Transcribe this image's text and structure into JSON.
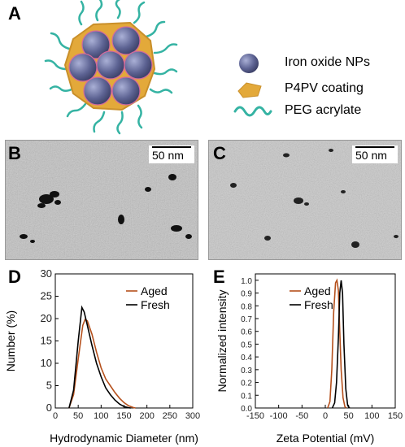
{
  "panels": {
    "A": "A",
    "B": "B",
    "C": "C",
    "D": "D",
    "E": "E"
  },
  "schematic_legend": [
    {
      "label": "Iron oxide NPs",
      "icon": "sphere-icon"
    },
    {
      "label": "P4PV coating",
      "icon": "coating-icon"
    },
    {
      "label": "PEG acrylate",
      "icon": "wave-icon"
    }
  ],
  "scale_bars": {
    "B": "50 nm",
    "C": "50 nm"
  },
  "colors": {
    "aged": "#b5501c",
    "fresh": "#000000",
    "np": "#5a5f8c",
    "coating": "#e3a93a",
    "peg": "#35b3a3"
  },
  "chart_data": [
    {
      "type": "line",
      "xlabel": "Hydrodynamic Diameter (nm)",
      "ylabel": "Number (%)",
      "xlim": [
        0,
        300
      ],
      "ylim": [
        0,
        30
      ],
      "xticks": [
        "0",
        "50",
        "100",
        "150",
        "200",
        "250",
        "300"
      ],
      "yticks": [
        "0",
        "5",
        "10",
        "15",
        "20",
        "25",
        "30"
      ],
      "legend": "top-right",
      "series": [
        {
          "name": "Aged",
          "x": [
            30,
            40,
            50,
            60,
            65,
            70,
            80,
            90,
            100,
            110,
            120,
            130,
            140,
            150,
            160,
            170,
            175
          ],
          "y": [
            0,
            3,
            11,
            18.5,
            19.8,
            19.5,
            16.5,
            12.5,
            9,
            6.5,
            5,
            3.5,
            2.2,
            1.2,
            0.5,
            0.1,
            0
          ]
        },
        {
          "name": "Fresh",
          "x": [
            30,
            40,
            50,
            58,
            63,
            70,
            80,
            90,
            100,
            110,
            120,
            130,
            140,
            150,
            160,
            165
          ],
          "y": [
            0,
            4,
            15,
            22.5,
            21.5,
            18.5,
            14,
            10,
            7,
            4.5,
            3,
            1.8,
            0.9,
            0.3,
            0.05,
            0
          ]
        }
      ]
    },
    {
      "type": "line",
      "xlabel": "Zeta Potential (mV)",
      "ylabel": "Normalized intensity",
      "xlim": [
        -150,
        150
      ],
      "ylim": [
        0,
        1.05
      ],
      "xticks": [
        "-150",
        "-100",
        "-50",
        "0",
        "50",
        "100",
        "150"
      ],
      "yticks": [
        "0.0",
        "0.1",
        "0.2",
        "0.3",
        "0.4",
        "0.5",
        "0.6",
        "0.7",
        "0.8",
        "0.9",
        "1.0"
      ],
      "legend": "top-left",
      "series": [
        {
          "name": "Aged",
          "x": [
            5,
            10,
            14,
            18,
            22,
            25,
            28,
            31,
            34,
            38,
            42,
            45
          ],
          "y": [
            0,
            0.05,
            0.3,
            0.75,
            0.98,
            1.0,
            0.92,
            0.6,
            0.3,
            0.08,
            0.01,
            0
          ]
        },
        {
          "name": "Fresh",
          "x": [
            15,
            20,
            24,
            28,
            31,
            34,
            37,
            40,
            44,
            48,
            52
          ],
          "y": [
            0,
            0.04,
            0.2,
            0.55,
            0.9,
            1.0,
            0.9,
            0.5,
            0.15,
            0.02,
            0
          ]
        }
      ]
    }
  ]
}
